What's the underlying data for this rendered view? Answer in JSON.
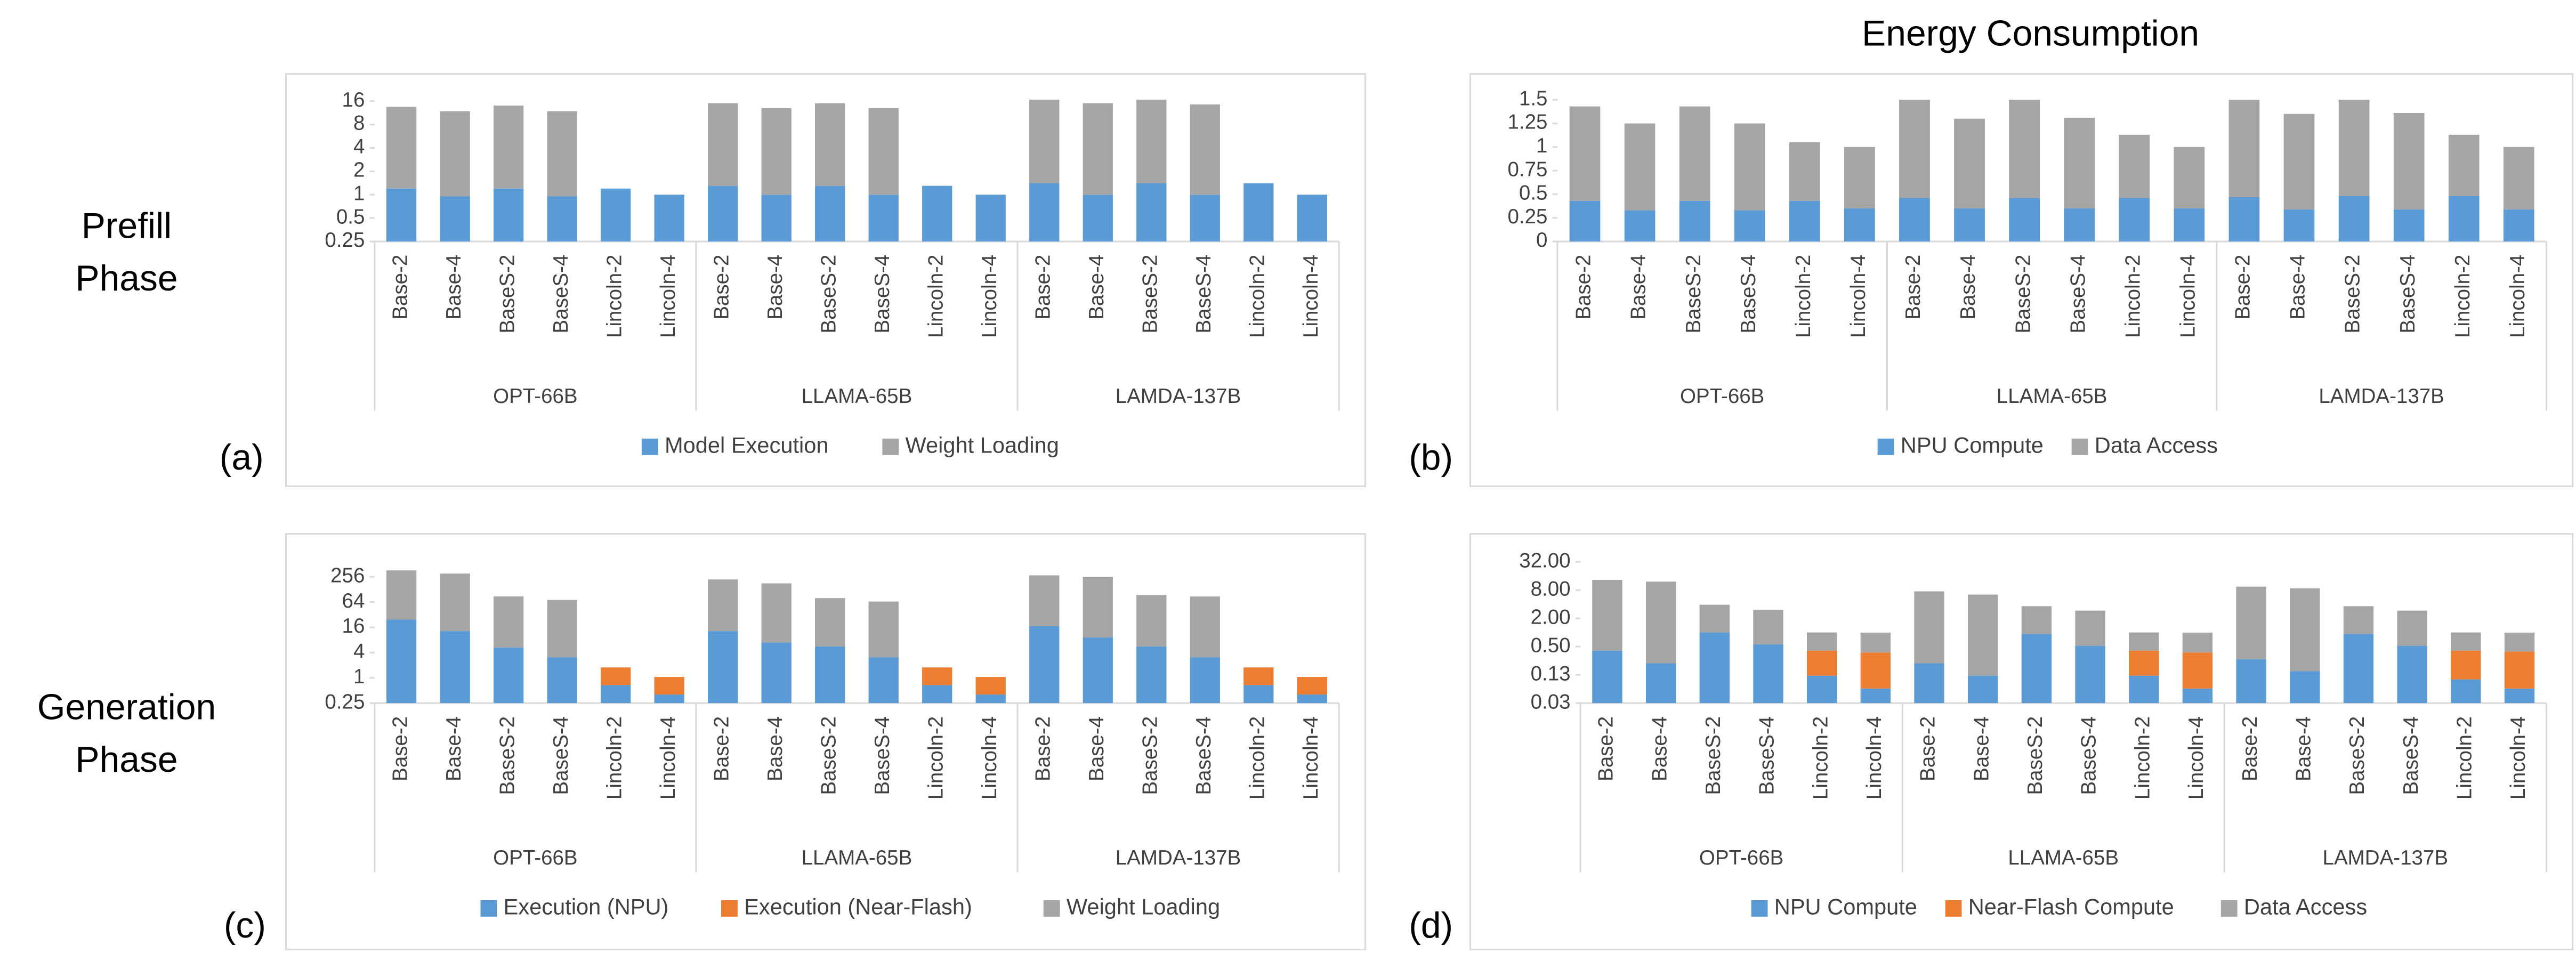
{
  "title": "Energy Consumption",
  "row_labels": [
    [
      "Prefill",
      "Phase"
    ],
    [
      "Generation",
      "Phase"
    ]
  ],
  "panel_labels": [
    "(a)",
    "(b)",
    "(c)",
    "(d)"
  ],
  "chart_data": [
    {
      "type": "bar",
      "stacked": true,
      "yscale": "log",
      "legend": "bottom",
      "groups": [
        "OPT-66B",
        "LLAMA-65B",
        "LAMDA-137B"
      ],
      "categories": [
        "Base-2",
        "Base-4",
        "BaseS-2",
        "BaseS-4",
        "Lincoln-2",
        "Lincoln-4",
        "Base-2",
        "Base-4",
        "BaseS-2",
        "BaseS-4",
        "Lincoln-2",
        "Lincoln-4",
        "Base-2",
        "Base-4",
        "BaseS-2",
        "BaseS-4",
        "Lincoln-2",
        "Lincoln-4"
      ],
      "ylim": [
        0.25,
        22
      ],
      "yticks": [
        0.25,
        0.5,
        1,
        2,
        4,
        8,
        16
      ],
      "series": [
        {
          "name": "Model Execution",
          "color": "#5b9bd5",
          "values": [
            1.2,
            0.95,
            1.2,
            0.95,
            1.2,
            1.0,
            1.3,
            1.0,
            1.3,
            1.0,
            1.3,
            1.0,
            1.4,
            1.0,
            1.4,
            1.0,
            1.4,
            1.0
          ]
        },
        {
          "name": "Weight Loading",
          "color": "#a5a5a5",
          "values": [
            12.3,
            10.9,
            12.8,
            10.9,
            0,
            0,
            13.7,
            12,
            13.7,
            12,
            0,
            0,
            15.3,
            14,
            15.3,
            13.5,
            0,
            0
          ]
        }
      ]
    },
    {
      "type": "bar",
      "stacked": true,
      "legend": "bottom",
      "groups": [
        "OPT-66B",
        "LLAMA-65B",
        "LAMDA-137B"
      ],
      "categories": [
        "Base-2",
        "Base-4",
        "BaseS-2",
        "BaseS-4",
        "Lincoln-2",
        "Lincoln-4",
        "Base-2",
        "Base-4",
        "BaseS-2",
        "BaseS-4",
        "Lincoln-2",
        "Lincoln-4",
        "Base-2",
        "Base-4",
        "BaseS-2",
        "BaseS-4",
        "Lincoln-2",
        "Lincoln-4"
      ],
      "ylim": [
        0,
        1.6
      ],
      "yticks": [
        0,
        0.25,
        0.5,
        0.75,
        1,
        1.25,
        1.5
      ],
      "series": [
        {
          "name": "NPU Compute",
          "color": "#5b9bd5",
          "values": [
            0.43,
            0.33,
            0.43,
            0.33,
            0.43,
            0.35,
            0.46,
            0.35,
            0.46,
            0.35,
            0.46,
            0.35,
            0.47,
            0.34,
            0.48,
            0.34,
            0.48,
            0.34
          ]
        },
        {
          "name": "Data Access",
          "color": "#a5a5a5",
          "values": [
            1.0,
            0.92,
            1.0,
            0.92,
            0.62,
            0.65,
            1.04,
            0.95,
            1.04,
            0.96,
            0.67,
            0.65,
            1.03,
            1.01,
            1.02,
            1.02,
            0.65,
            0.66
          ]
        }
      ]
    },
    {
      "type": "bar",
      "stacked": true,
      "yscale": "log",
      "legend": "bottom",
      "groups": [
        "OPT-66B",
        "LLAMA-65B",
        "LAMDA-137B"
      ],
      "categories": [
        "Base-2",
        "Base-4",
        "BaseS-2",
        "BaseS-4",
        "Lincoln-2",
        "Lincoln-4",
        "Base-2",
        "Base-4",
        "BaseS-2",
        "BaseS-4",
        "Lincoln-2",
        "Lincoln-4",
        "Base-2",
        "Base-4",
        "BaseS-2",
        "BaseS-4",
        "Lincoln-2",
        "Lincoln-4"
      ],
      "ylim": [
        0.25,
        700
      ],
      "yticks": [
        0.25,
        1,
        4,
        16,
        64,
        256
      ],
      "series": [
        {
          "name": "Execution (NPU)",
          "color": "#5b9bd5",
          "values": [
            24.5,
            13,
            5.3,
            3.1,
            0.67,
            0.4,
            13,
            7,
            5.6,
            3.1,
            0.67,
            0.4,
            17,
            9.2,
            5.6,
            3.1,
            0.67,
            0.4
          ]
        },
        {
          "name": "Execution (Near-Flash)",
          "color": "#ed7d31",
          "values": [
            0,
            0,
            0,
            0,
            1.1,
            0.65,
            0,
            0,
            0,
            0,
            1.1,
            0.65,
            0,
            0,
            0,
            0,
            1.1,
            0.65
          ]
        },
        {
          "name": "Weight Loading",
          "color": "#a5a5a5",
          "values": [
            340,
            294,
            82,
            69,
            0,
            0,
            209,
            172,
            74,
            63,
            0,
            0,
            261,
            247,
            89,
            84,
            0,
            0
          ]
        }
      ]
    },
    {
      "type": "bar",
      "stacked": true,
      "yscale": "log",
      "legend": "bottom",
      "groups": [
        "OPT-66B",
        "LLAMA-65B",
        "LAMDA-137B"
      ],
      "categories": [
        "Base-2",
        "Base-4",
        "BaseS-2",
        "BaseS-4",
        "Lincoln-2",
        "Lincoln-4",
        "Base-2",
        "Base-4",
        "BaseS-2",
        "BaseS-4",
        "Lincoln-2",
        "Lincoln-4",
        "Base-2",
        "Base-4",
        "BaseS-2",
        "BaseS-4",
        "Lincoln-2",
        "Lincoln-4"
      ],
      "ylim": [
        0.03125,
        52
      ],
      "yticks": [
        {
          "value": 0.03125,
          "label": "0.03"
        },
        {
          "value": 0.125,
          "label": "0.13"
        },
        {
          "value": 0.5,
          "label": "0.50"
        },
        {
          "value": 2,
          "label": "2.00"
        },
        {
          "value": 8,
          "label": "8.00"
        },
        {
          "value": 32,
          "label": "32.00"
        }
      ],
      "series": [
        {
          "name": "NPU Compute",
          "color": "#5b9bd5",
          "values": [
            0.41,
            0.22,
            1.0,
            0.56,
            0.12,
            0.064,
            0.22,
            0.12,
            0.93,
            0.52,
            0.12,
            0.064,
            0.27,
            0.15,
            0.93,
            0.52,
            0.1,
            0.064
          ]
        },
        {
          "name": "Near-Flash Compute",
          "color": "#ed7d31",
          "values": [
            0,
            0,
            0,
            0,
            0.29,
            0.31,
            0,
            0,
            0,
            0,
            0.29,
            0.31,
            0,
            0,
            0,
            0,
            0.31,
            0.33
          ]
        },
        {
          "name": "Data Access",
          "color": "#a5a5a5",
          "values": [
            12.8,
            11.9,
            2.9,
            2.5,
            0.59,
            0.62,
            7.3,
            6.3,
            2.7,
            2.4,
            0.59,
            0.62,
            9.2,
            8.6,
            2.7,
            2.4,
            0.59,
            0.6
          ]
        }
      ]
    }
  ]
}
